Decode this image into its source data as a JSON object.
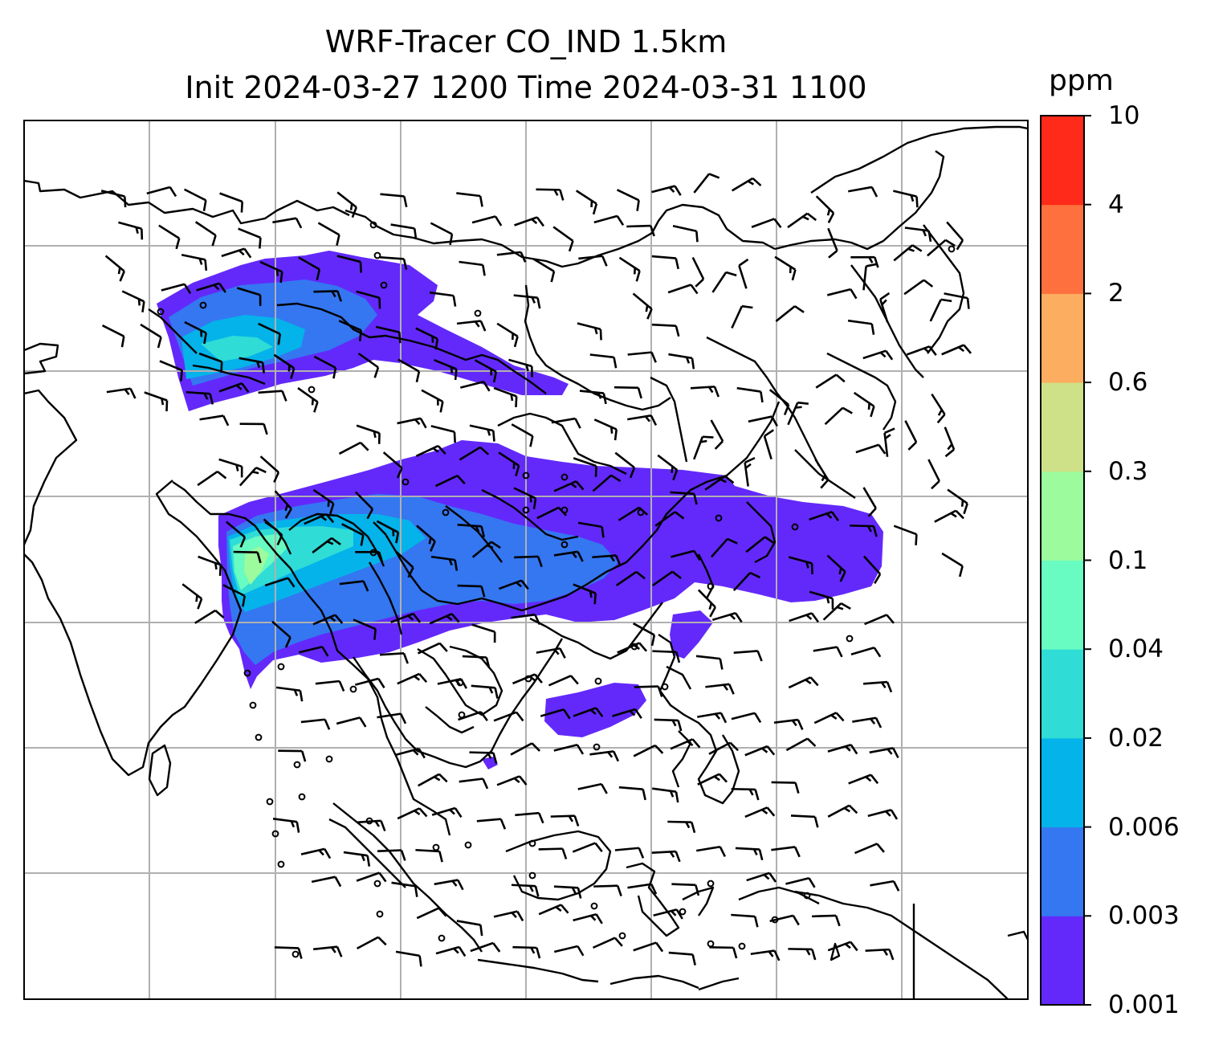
{
  "title_line1": "WRF-Tracer CO_IND 1.5km",
  "title_line2": "Init 2024-03-27 1200 Time 2024-03-31 1100",
  "colorbar": {
    "unit": "ppm",
    "levels": [
      "0.001",
      "0.003",
      "0.006",
      "0.02",
      "0.04",
      "0.1",
      "0.3",
      "0.6",
      "2",
      "4",
      "10"
    ],
    "colors": [
      "#6329fb",
      "#3477f1",
      "#04b3ea",
      "#2fdcd6",
      "#68fbc2",
      "#9cfb9c",
      "#cfe188",
      "#fdad5f",
      "#fe703d",
      "#ff2a19"
    ]
  },
  "map": {
    "gridlines": true,
    "features": [
      "coastlines",
      "country borders",
      "wind barbs",
      "calm-wind circles"
    ],
    "tracer_field": "CO_IND"
  }
}
